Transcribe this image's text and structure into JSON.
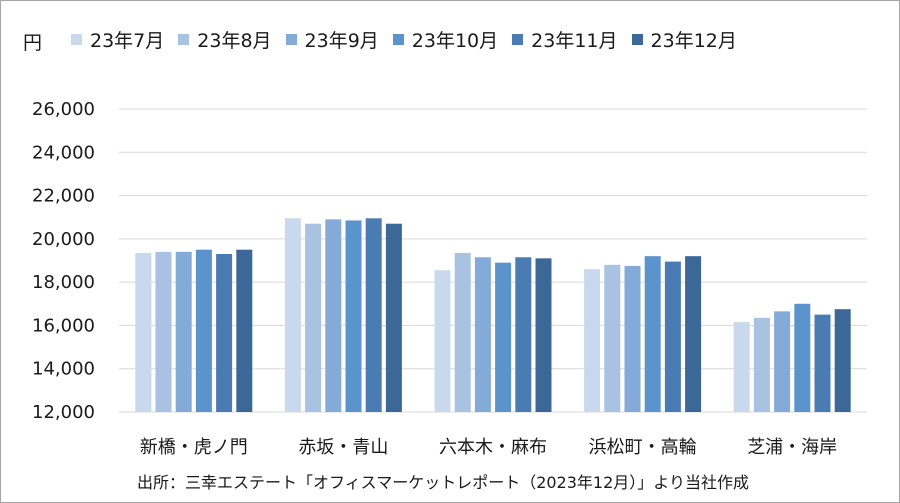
{
  "chart_data": {
    "type": "bar",
    "unit_label": "円",
    "categories": [
      "新橋・虎ノ門",
      "赤坂・青山",
      "六本木・麻布",
      "浜松町・高輪",
      "芝浦・海岸"
    ],
    "series": [
      {
        "name": "23年7月",
        "color": "#c9d8ec",
        "values": [
          19350,
          20950,
          18550,
          18600,
          16150
        ]
      },
      {
        "name": "23年8月",
        "color": "#a9c2e2",
        "values": [
          19400,
          20700,
          19350,
          18800,
          16350
        ]
      },
      {
        "name": "23年9月",
        "color": "#84aad8",
        "values": [
          19400,
          20900,
          19150,
          18750,
          16650
        ]
      },
      {
        "name": "23年10月",
        "color": "#5b93cc",
        "values": [
          19500,
          20850,
          18900,
          19200,
          17000
        ]
      },
      {
        "name": "23年11月",
        "color": "#4a7cb3",
        "values": [
          19300,
          20950,
          19150,
          18950,
          16500
        ]
      },
      {
        "name": "23年12月",
        "color": "#3c6898",
        "values": [
          19500,
          20700,
          19100,
          19200,
          16750
        ]
      }
    ],
    "ylim": [
      12000,
      26000
    ],
    "yticks": [
      "12,000",
      "14,000",
      "16,000",
      "18,000",
      "20,000",
      "22,000",
      "24,000",
      "26,000"
    ],
    "grid": true,
    "legend_position": "top"
  },
  "source": "出所：三幸エステート「オフィスマーケットレポート（2023年12月）」より当社作成"
}
